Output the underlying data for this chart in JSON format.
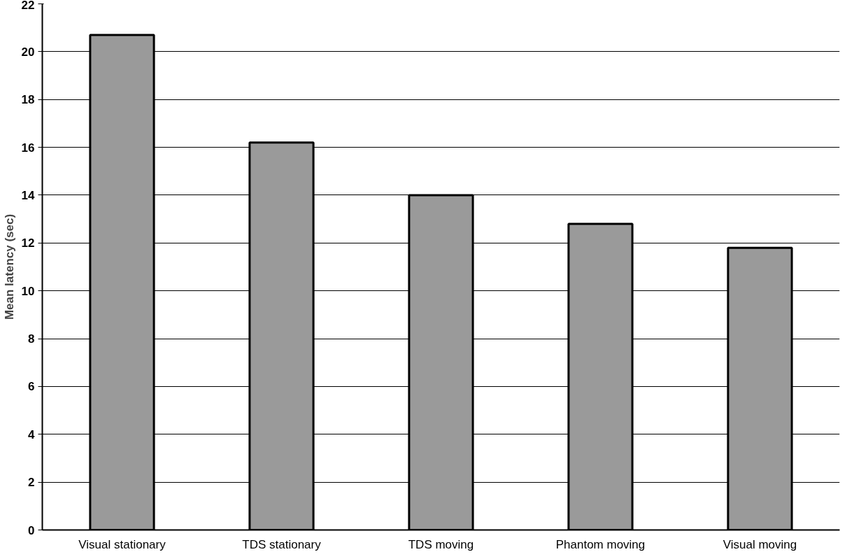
{
  "chart_data": {
    "type": "bar",
    "ylabel": "Mean latency (sec)",
    "categories": [
      "Visual stationary",
      "TDS stationary",
      "TDS moving",
      "Phantom moving",
      "Visual moving"
    ],
    "values": [
      20.7,
      16.2,
      14.0,
      12.8,
      11.8
    ],
    "color": "#9a9a9a",
    "ylim": [
      0,
      22
    ],
    "yticks": [
      0,
      2,
      4,
      6,
      8,
      10,
      12,
      14,
      16,
      18,
      20,
      22
    ],
    "grid": "y"
  }
}
